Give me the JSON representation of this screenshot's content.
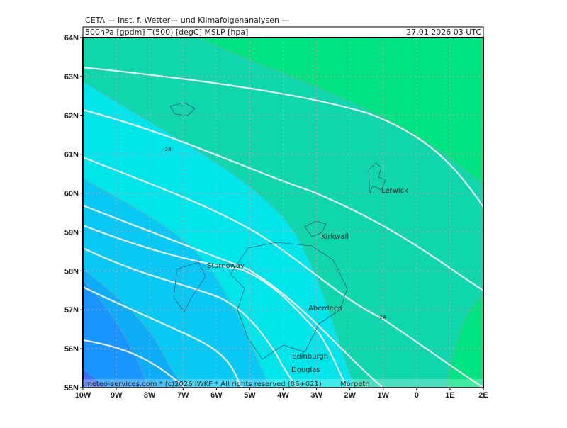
{
  "header": {
    "line1": "CETA — Inst. f. Wetter— und Klimafolgenanalysen —",
    "line2": "500hPa [gpdm] T(500) [degC] MSLP [hpa]",
    "valid_time": "27.01.2026 03 UTC"
  },
  "axes": {
    "lat_labels": [
      "64N",
      "63N",
      "62N",
      "61N",
      "60N",
      "59N",
      "58N",
      "57N",
      "56N",
      "55N"
    ],
    "lon_labels": [
      "10W",
      "9W",
      "8W",
      "7W",
      "6W",
      "5W",
      "4W",
      "3W",
      "2W",
      "1W",
      "0",
      "1E",
      "2E"
    ]
  },
  "places": [
    {
      "name": "Lerwick"
    },
    {
      "name": "Kirkwall"
    },
    {
      "name": "Stornoway"
    },
    {
      "name": "Aberdeen"
    },
    {
      "name": "Edinburgh"
    },
    {
      "name": "Douglas"
    },
    {
      "name": "Morpeth"
    }
  ],
  "contour_labels": [
    "-28",
    "-24"
  ],
  "footer": "meteo-services.com * (c)2026 IWKF * All rights reserved (06+021)"
}
